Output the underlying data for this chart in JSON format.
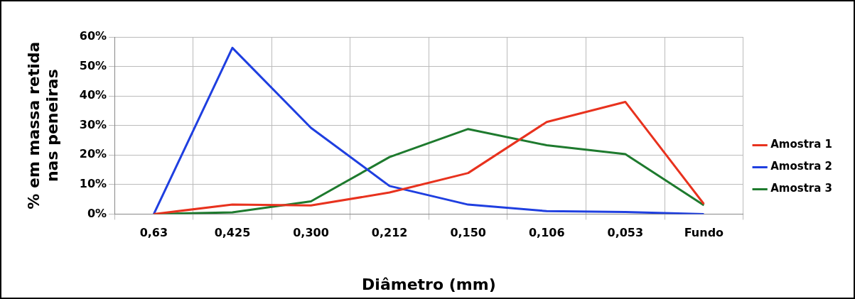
{
  "chart_data": {
    "type": "line",
    "xlabel": "Diâmetro (mm)",
    "ylabel": "% em massa retida nas peneiras",
    "categories": [
      "0,63",
      "0,425",
      "0,300",
      "0,212",
      "0,150",
      "0,106",
      "0,053",
      "Fundo"
    ],
    "series": [
      {
        "name": "Amostra 1",
        "color": "#e8321e",
        "values": [
          0,
          3.2,
          2.9,
          7.3,
          13.9,
          31.2,
          38,
          3.4
        ]
      },
      {
        "name": "Amostra 2",
        "color": "#1f3fe0",
        "values": [
          0,
          56.3,
          29.2,
          9.5,
          3.2,
          1,
          0.7,
          0
        ]
      },
      {
        "name": "Amostra 3",
        "color": "#1e7a2e",
        "values": [
          0,
          0.6,
          4.3,
          19.3,
          28.8,
          23.3,
          20.3,
          3
        ]
      }
    ],
    "ylim": [
      0,
      60
    ],
    "yticks": [
      {
        "value": 0,
        "label": "0%"
      },
      {
        "value": 10,
        "label": "10%"
      },
      {
        "value": 20,
        "label": "20%"
      },
      {
        "value": 30,
        "label": "30%"
      },
      {
        "value": 40,
        "label": "40%"
      },
      {
        "value": 50,
        "label": "50%"
      },
      {
        "value": 60,
        "label": "60%"
      }
    ],
    "grid": true,
    "legend": "right",
    "marker": "none",
    "line_style": "solid"
  }
}
